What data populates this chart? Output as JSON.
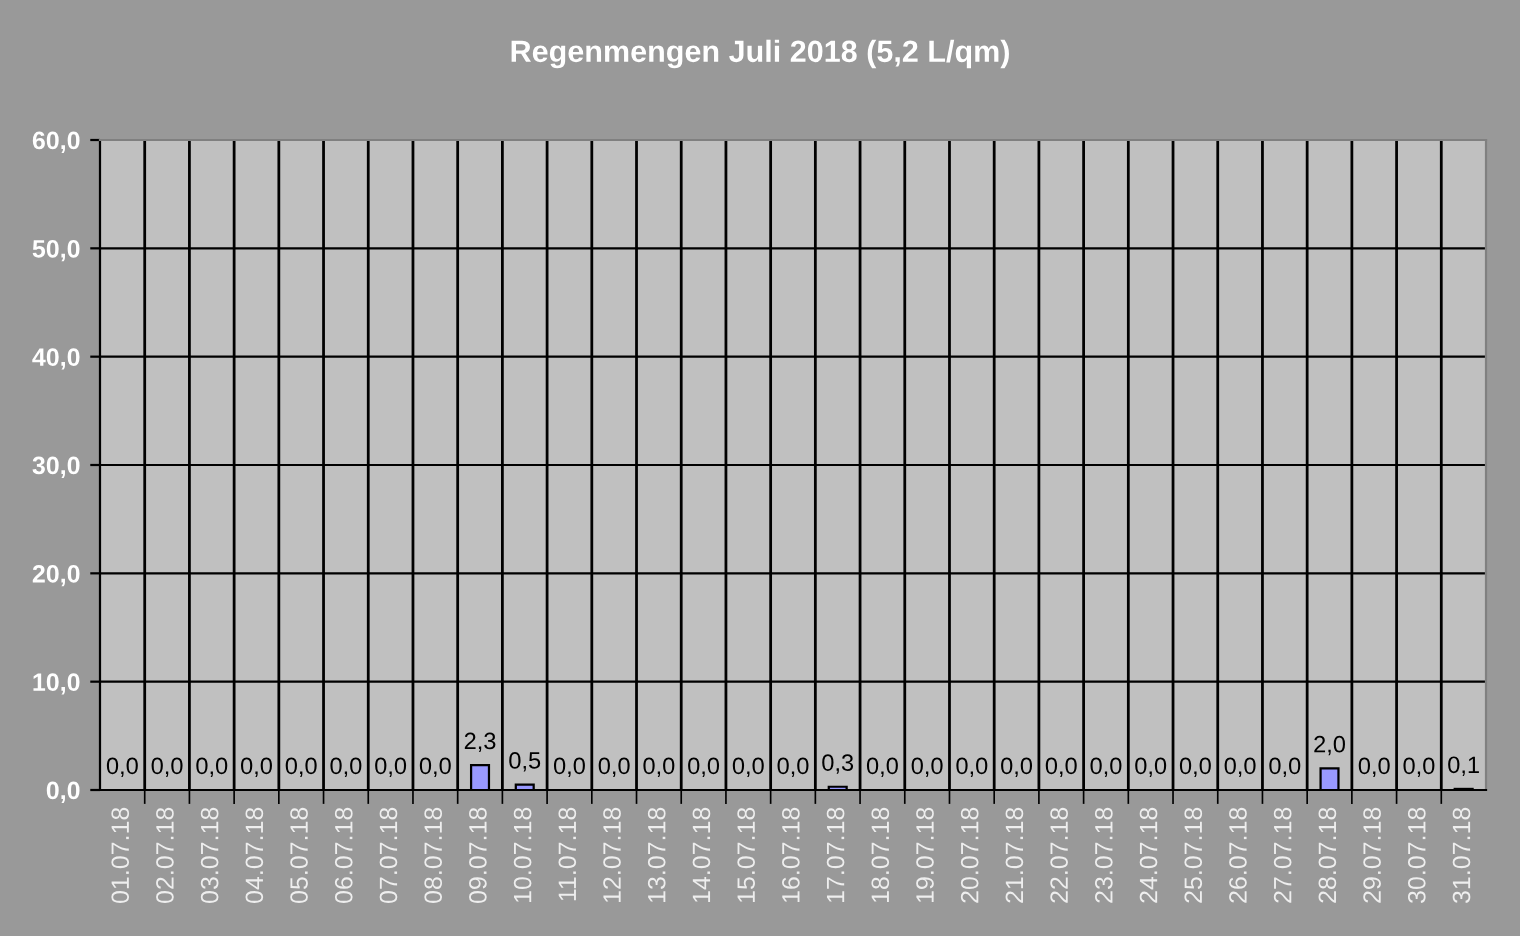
{
  "chart_data": {
    "type": "bar",
    "title": "Regenmengen Juli 2018 (5,2 L/qm)",
    "categories": [
      "01.07.18",
      "02.07.18",
      "03.07.18",
      "04.07.18",
      "05.07.18",
      "06.07.18",
      "07.07.18",
      "08.07.18",
      "09.07.18",
      "10.07.18",
      "11.07.18",
      "12.07.18",
      "13.07.18",
      "14.07.18",
      "15.07.18",
      "16.07.18",
      "17.07.18",
      "18.07.18",
      "19.07.18",
      "20.07.18",
      "21.07.18",
      "22.07.18",
      "23.07.18",
      "24.07.18",
      "25.07.18",
      "26.07.18",
      "27.07.18",
      "28.07.18",
      "29.07.18",
      "30.07.18",
      "31.07.18"
    ],
    "values": [
      0,
      0,
      0,
      0,
      0,
      0,
      0,
      0,
      2.3,
      0.5,
      0,
      0,
      0,
      0,
      0,
      0,
      0.3,
      0,
      0,
      0,
      0,
      0,
      0,
      0,
      0,
      0,
      0,
      2.0,
      0,
      0,
      0.1
    ],
    "value_labels": [
      "0,0",
      "0,0",
      "0,0",
      "0,0",
      "0,0",
      "0,0",
      "0,0",
      "0,0",
      "2,3",
      "0,5",
      "0,0",
      "0,0",
      "0,0",
      "0,0",
      "0,0",
      "0,0",
      "0,3",
      "0,0",
      "0,0",
      "0,0",
      "0,0",
      "0,0",
      "0,0",
      "0,0",
      "0,0",
      "0,0",
      "0,0",
      "2,0",
      "0,0",
      "0,0",
      "0,1"
    ],
    "color": "#9999ff",
    "ylim": [
      0,
      60
    ],
    "yticks": [
      {
        "value": 0,
        "label": "0,0"
      },
      {
        "value": 10,
        "label": "10,0"
      },
      {
        "value": 20,
        "label": "20,0"
      },
      {
        "value": 30,
        "label": "30,0"
      },
      {
        "value": 40,
        "label": "40,0"
      },
      {
        "value": 50,
        "label": "50,0"
      },
      {
        "value": 60,
        "label": "60,0"
      }
    ],
    "grid": true,
    "legend": false
  }
}
